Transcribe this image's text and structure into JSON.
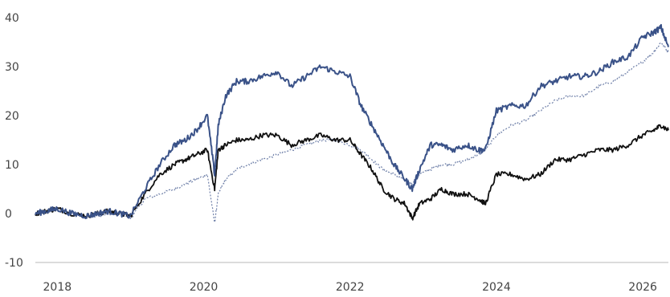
{
  "chart_data": {
    "type": "line",
    "title": "",
    "xlabel": "",
    "ylabel": "",
    "xlim": [
      2017.7,
      2026.35
    ],
    "ylim": [
      -10,
      40
    ],
    "y_ticks": [
      -10,
      0,
      10,
      20,
      30,
      40
    ],
    "x_ticks": [
      2018,
      2020,
      2022,
      2024,
      2026
    ],
    "y_tick_labels": [
      "-10",
      "0",
      "10",
      "20",
      "30",
      "40"
    ],
    "x_tick_labels": [
      "2018",
      "2020",
      "2022",
      "2024",
      "2026"
    ],
    "grid": false,
    "legend": "none",
    "colors": {
      "series_black": "#111111",
      "series_navy": "#3a5288",
      "series_dotted": "#6e7fa8",
      "axis": "#c8c8c8"
    },
    "series": [
      {
        "x": [
          2017.7,
          2017.85,
          2018.0,
          2018.2,
          2018.4,
          2018.55,
          2018.7,
          2018.85,
          2019.0,
          2019.2,
          2019.4,
          2019.6,
          2019.75,
          2019.9,
          2020.05,
          2020.15,
          2020.2,
          2020.3,
          2020.45,
          2020.6,
          2020.8,
          2021.0,
          2021.2,
          2021.4,
          2021.6,
          2021.8,
          2022.0,
          2022.15,
          2022.3,
          2022.45,
          2022.6,
          2022.75,
          2022.85,
          2022.95,
          2023.1,
          2023.25,
          2023.4,
          2023.6,
          2023.75,
          2023.85,
          2024.0,
          2024.2,
          2024.4,
          2024.6,
          2024.8,
          2025.0,
          2025.2,
          2025.4,
          2025.6,
          2025.8,
          2026.0,
          2026.15,
          2026.25,
          2026.35
        ],
        "values": [
          0,
          0.5,
          1,
          0,
          -0.5,
          0,
          0.5,
          0,
          -0.5,
          4,
          8,
          10,
          11,
          12,
          13,
          5,
          13,
          14,
          15,
          15,
          16,
          16,
          14,
          15,
          16,
          15,
          15,
          12,
          9,
          5,
          3,
          2,
          -1,
          2,
          3,
          5,
          4,
          4,
          3,
          2,
          8,
          8,
          7,
          8,
          11,
          11,
          12,
          13,
          13,
          14,
          16,
          17,
          18,
          17
        ]
      },
      {
        "x": [
          2017.7,
          2017.85,
          2018.0,
          2018.2,
          2018.4,
          2018.55,
          2018.7,
          2018.85,
          2019.0,
          2019.2,
          2019.4,
          2019.6,
          2019.75,
          2019.9,
          2020.05,
          2020.15,
          2020.2,
          2020.3,
          2020.45,
          2020.6,
          2020.8,
          2021.0,
          2021.2,
          2021.4,
          2021.6,
          2021.8,
          2022.0,
          2022.15,
          2022.3,
          2022.45,
          2022.6,
          2022.75,
          2022.85,
          2022.95,
          2023.1,
          2023.25,
          2023.4,
          2023.6,
          2023.75,
          2023.85,
          2024.0,
          2024.2,
          2024.4,
          2024.6,
          2024.8,
          2025.0,
          2025.2,
          2025.4,
          2025.6,
          2025.8,
          2026.0,
          2026.15,
          2026.25,
          2026.35
        ],
        "values": [
          0,
          0.5,
          1,
          0,
          -0.5,
          0,
          0.5,
          0,
          -0.5,
          5,
          10,
          14,
          15,
          17,
          20,
          8,
          18,
          24,
          27,
          27,
          28,
          29,
          26,
          28,
          30,
          29,
          28,
          22,
          18,
          14,
          10,
          7,
          5,
          9,
          14,
          14,
          13,
          14,
          13,
          13,
          21,
          22,
          22,
          26,
          27,
          28,
          28,
          29,
          31,
          32,
          36,
          37,
          38,
          34
        ]
      },
      {
        "x": [
          2017.7,
          2017.85,
          2018.0,
          2018.2,
          2018.4,
          2018.55,
          2018.7,
          2018.85,
          2019.0,
          2019.2,
          2019.4,
          2019.6,
          2019.75,
          2019.9,
          2020.05,
          2020.15,
          2020.2,
          2020.3,
          2020.45,
          2020.6,
          2020.8,
          2021.0,
          2021.2,
          2021.4,
          2021.6,
          2021.8,
          2022.0,
          2022.15,
          2022.3,
          2022.45,
          2022.6,
          2022.75,
          2022.85,
          2022.95,
          2023.1,
          2023.25,
          2023.4,
          2023.6,
          2023.75,
          2023.85,
          2024.0,
          2024.2,
          2024.4,
          2024.6,
          2024.8,
          2025.0,
          2025.2,
          2025.4,
          2025.6,
          2025.8,
          2026.0,
          2026.15,
          2026.25,
          2026.35
        ],
        "values": [
          0,
          0.5,
          1,
          0,
          -0.5,
          -0.5,
          0,
          0,
          -1,
          3,
          4,
          5,
          6,
          7,
          8,
          -2,
          4,
          7,
          9,
          10,
          11,
          12,
          13,
          14,
          15,
          15,
          14,
          13,
          11,
          9,
          8,
          7,
          6,
          8,
          9,
          10,
          10,
          11,
          12,
          13,
          16,
          18,
          19,
          21,
          23,
          24,
          24,
          26,
          27,
          29,
          31,
          33,
          35,
          33
        ]
      }
    ]
  }
}
